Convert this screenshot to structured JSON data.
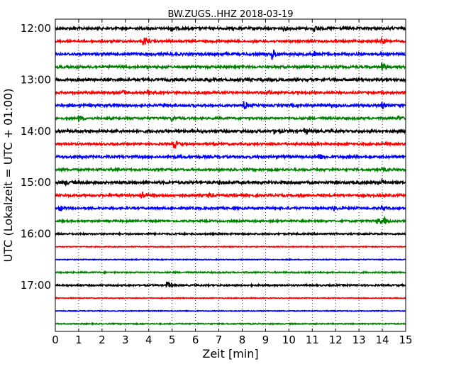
{
  "chart_data": {
    "type": "line",
    "title": "BW.ZUGS..HHZ 2018-03-19",
    "xlabel": "Zeit  [min]",
    "ylabel": "UTC (Lokalzeit = UTC + 01:00)",
    "xlim": [
      0,
      15
    ],
    "x_ticks": [
      "0",
      "1",
      "2",
      "3",
      "4",
      "5",
      "6",
      "7",
      "8",
      "9",
      "10",
      "11",
      "12",
      "13",
      "14",
      "15"
    ],
    "y_ticks": [
      "12:00",
      "13:00",
      "14:00",
      "15:00",
      "16:00",
      "17:00"
    ],
    "grid": "vertical dotted",
    "series": [
      {
        "start": "12:00",
        "color": "#000000",
        "amplitude": 0.18,
        "events": [
          {
            "t": 5.0,
            "a": 0.35
          },
          {
            "t": 9.8,
            "a": 0.3
          },
          {
            "t": 11.1,
            "a": 0.3
          }
        ]
      },
      {
        "start": "12:15",
        "color": "#ff0000",
        "amplitude": 0.16,
        "events": [
          {
            "t": 3.8,
            "a": 0.6
          },
          {
            "t": 14.0,
            "a": 0.4
          }
        ]
      },
      {
        "start": "12:30",
        "color": "#0000ff",
        "amplitude": 0.2,
        "events": [
          {
            "t": 9.3,
            "a": 0.75
          },
          {
            "t": 11.1,
            "a": 0.3
          }
        ]
      },
      {
        "start": "12:45",
        "color": "#008000",
        "amplitude": 0.18,
        "events": [
          {
            "t": 14.0,
            "a": 0.6
          }
        ]
      },
      {
        "start": "13:00",
        "color": "#000000",
        "amplitude": 0.2,
        "events": [
          {
            "t": 6.5,
            "a": 0.25
          }
        ]
      },
      {
        "start": "13:15",
        "color": "#ff0000",
        "amplitude": 0.17,
        "events": [
          {
            "t": 2.9,
            "a": 0.3
          },
          {
            "t": 4.0,
            "a": 0.3
          },
          {
            "t": 9.2,
            "a": 0.25
          }
        ]
      },
      {
        "start": "13:30",
        "color": "#0000ff",
        "amplitude": 0.18,
        "events": [
          {
            "t": 8.1,
            "a": 0.55
          },
          {
            "t": 14.0,
            "a": 0.4
          }
        ]
      },
      {
        "start": "13:45",
        "color": "#008000",
        "amplitude": 0.16,
        "events": [
          {
            "t": 1.0,
            "a": 0.45
          },
          {
            "t": 5.0,
            "a": 0.3
          },
          {
            "t": 14.7,
            "a": 0.3
          }
        ]
      },
      {
        "start": "14:00",
        "color": "#000000",
        "amplitude": 0.2,
        "events": [
          {
            "t": 9.4,
            "a": 0.3
          },
          {
            "t": 10.7,
            "a": 0.3
          }
        ]
      },
      {
        "start": "14:15",
        "color": "#ff0000",
        "amplitude": 0.16,
        "events": [
          {
            "t": 5.1,
            "a": 0.65
          }
        ]
      },
      {
        "start": "14:30",
        "color": "#0000ff",
        "amplitude": 0.19,
        "events": [
          {
            "t": 11.3,
            "a": 0.5
          }
        ]
      },
      {
        "start": "14:45",
        "color": "#008000",
        "amplitude": 0.16,
        "events": [
          {
            "t": 14.0,
            "a": 0.25
          }
        ]
      },
      {
        "start": "15:00",
        "color": "#000000",
        "amplitude": 0.2,
        "events": [
          {
            "t": 0.4,
            "a": 0.3
          },
          {
            "t": 7.0,
            "a": 0.25
          },
          {
            "t": 14.0,
            "a": 0.3
          }
        ]
      },
      {
        "start": "15:15",
        "color": "#ff0000",
        "amplitude": 0.18,
        "events": [
          {
            "t": 3.7,
            "a": 0.65
          },
          {
            "t": 6.6,
            "a": 0.3
          }
        ]
      },
      {
        "start": "15:30",
        "color": "#0000ff",
        "amplitude": 0.16,
        "events": [
          {
            "t": 0.2,
            "a": 0.45
          },
          {
            "t": 11.9,
            "a": 0.35
          },
          {
            "t": 14.0,
            "a": 0.3
          }
        ]
      },
      {
        "start": "15:45",
        "color": "#008000",
        "amplitude": 0.14,
        "events": [
          {
            "t": 13.8,
            "a": 0.45
          },
          {
            "t": 14.1,
            "a": 0.4
          }
        ]
      },
      {
        "start": "16:00",
        "color": "#000000",
        "amplitude": 0.12,
        "events": []
      },
      {
        "start": "16:15",
        "color": "#ff0000",
        "amplitude": 0.06,
        "events": []
      },
      {
        "start": "16:30",
        "color": "#0000ff",
        "amplitude": 0.06,
        "events": []
      },
      {
        "start": "16:45",
        "color": "#008000",
        "amplitude": 0.1,
        "events": []
      },
      {
        "start": "17:00",
        "color": "#000000",
        "amplitude": 0.12,
        "events": [
          {
            "t": 4.8,
            "a": 0.5
          }
        ]
      },
      {
        "start": "17:15",
        "color": "#ff0000",
        "amplitude": 0.06,
        "events": []
      },
      {
        "start": "17:30",
        "color": "#0000ff",
        "amplitude": 0.06,
        "events": []
      },
      {
        "start": "17:45",
        "color": "#008000",
        "amplitude": 0.08,
        "events": []
      }
    ]
  }
}
